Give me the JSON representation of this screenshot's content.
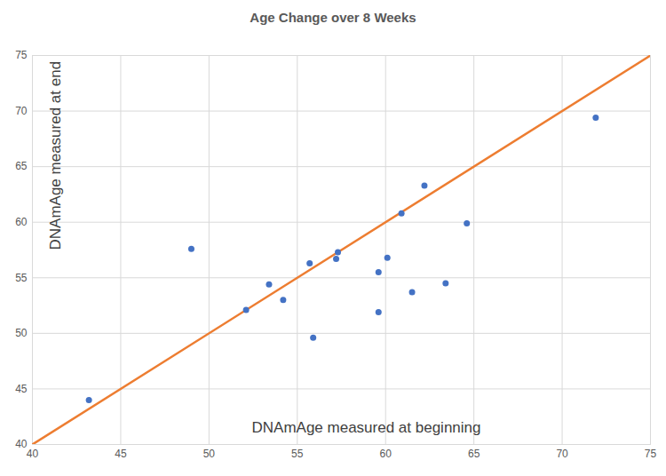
{
  "chart_data": {
    "type": "scatter",
    "title": "Age Change over 8 Weeks",
    "x_label": "DNAmAge measured at beginning",
    "y_label": "DNAmAge measured at end",
    "x": [
      43.2,
      49.0,
      52.1,
      53.4,
      54.2,
      55.7,
      55.9,
      57.2,
      57.3,
      59.6,
      59.6,
      60.1,
      60.9,
      61.5,
      62.2,
      63.4,
      64.6,
      71.9
    ],
    "values": [
      44.0,
      57.6,
      52.1,
      54.4,
      53.0,
      56.3,
      49.6,
      56.7,
      57.3,
      55.5,
      51.9,
      56.8,
      60.8,
      53.7,
      63.3,
      54.5,
      59.9,
      69.4
    ],
    "color": "#4472c4",
    "marker": "circle",
    "reference_line": {
      "x": [
        40,
        75
      ],
      "y": [
        40,
        75
      ],
      "color": "#ed7d31"
    },
    "xlim": [
      40,
      75
    ],
    "ylim": [
      40,
      75
    ],
    "xticks": [
      40,
      45,
      50,
      55,
      60,
      65,
      70,
      75
    ],
    "yticks": [
      40,
      45,
      50,
      55,
      60,
      65,
      70,
      75
    ],
    "grid": true
  }
}
